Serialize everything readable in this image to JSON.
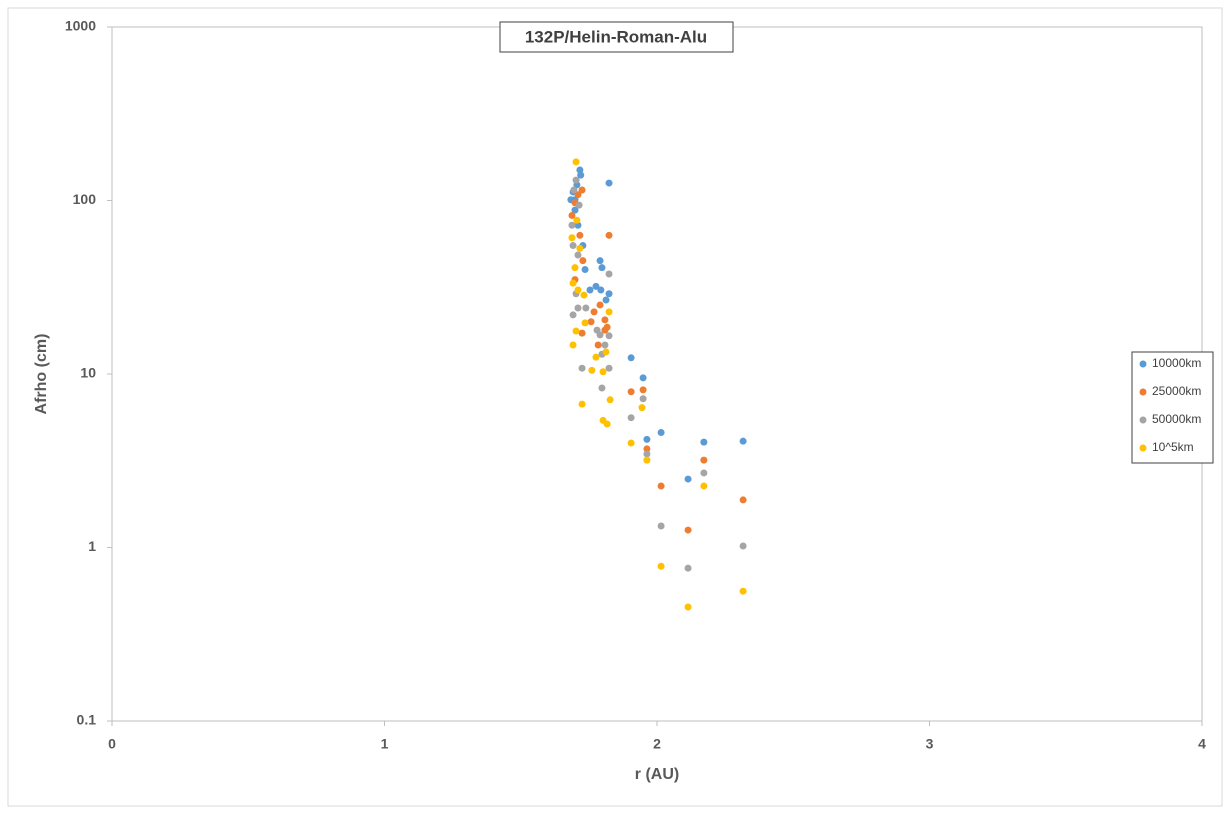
{
  "chart_data": {
    "type": "scatter",
    "title": "132P/Helin-Roman-Alu",
    "x_label": "r (AU)",
    "y_label": "Afrho (cm)",
    "xlim": [
      0,
      4
    ],
    "xticks": [
      0,
      1,
      2,
      3,
      4
    ],
    "ylim": [
      0.1,
      1000
    ],
    "yticks": [
      0.1,
      1,
      10,
      100,
      1000
    ],
    "y_scale": "log",
    "grid": false,
    "legend": "right",
    "series": [
      {
        "name": "10000km",
        "color": "#5b9bd5",
        "x": [
          1.717,
          1.72,
          1.706,
          1.692,
          1.684,
          1.824,
          1.699,
          1.71,
          1.728,
          1.736,
          1.776,
          1.791,
          1.798,
          1.794,
          1.824,
          1.813,
          1.905,
          1.949,
          1.963,
          2.015,
          2.172,
          2.114,
          2.316,
          1.699,
          1.754
        ],
        "values": [
          150,
          140,
          123,
          112,
          101,
          126,
          88,
          72,
          55,
          40,
          32,
          45,
          41,
          30.5,
          29,
          26.7,
          12.4,
          9.5,
          4.2,
          4.6,
          4.05,
          2.48,
          4.1,
          101,
          30.5
        ]
      },
      {
        "name": "25000km",
        "color": "#ed7d31",
        "x": [
          1.725,
          1.71,
          1.699,
          1.688,
          1.717,
          1.824,
          1.728,
          1.699,
          1.791,
          1.769,
          1.809,
          1.817,
          1.725,
          1.758,
          1.784,
          1.905,
          1.949,
          1.963,
          2.015,
          2.172,
          2.114,
          2.316,
          1.809
        ],
        "values": [
          115,
          108,
          97,
          82,
          63,
          63,
          45,
          35,
          25,
          22.8,
          20.5,
          18.6,
          17.2,
          20,
          14.7,
          7.9,
          8.1,
          3.7,
          2.26,
          3.19,
          1.26,
          1.88,
          17.9
        ]
      },
      {
        "name": "50000km",
        "color": "#a5a5a5",
        "x": [
          1.703,
          1.695,
          1.714,
          1.688,
          1.692,
          1.71,
          1.824,
          1.703,
          1.71,
          1.739,
          1.78,
          1.791,
          1.824,
          1.809,
          1.798,
          1.824,
          1.725,
          1.798,
          1.905,
          1.949,
          1.963,
          2.015,
          2.172,
          2.114,
          2.316,
          1.692
        ],
        "values": [
          131,
          115,
          94,
          72,
          55,
          48.5,
          37.7,
          29,
          24,
          24,
          17.9,
          16.8,
          16.6,
          14.7,
          13,
          10.8,
          10.8,
          8.3,
          5.6,
          7.2,
          3.46,
          1.33,
          2.69,
          0.76,
          1.02,
          21.9
        ]
      },
      {
        "name": "10^5km",
        "color": "#ffc000",
        "x": [
          1.703,
          1.706,
          1.717,
          1.688,
          1.699,
          1.692,
          1.71,
          1.732,
          1.736,
          1.692,
          1.703,
          1.761,
          1.776,
          1.802,
          1.824,
          1.813,
          1.725,
          1.802,
          1.817,
          1.828,
          1.905,
          1.945,
          1.963,
          2.015,
          2.172,
          2.114,
          2.316
        ],
        "values": [
          167,
          77,
          53,
          61,
          41,
          33.4,
          30.5,
          28.5,
          19.7,
          14.7,
          17.7,
          10.5,
          12.5,
          10.3,
          22.8,
          13.4,
          6.7,
          5.4,
          5.15,
          7.1,
          4.0,
          6.4,
          3.19,
          0.78,
          2.26,
          0.454,
          0.56
        ]
      }
    ]
  }
}
